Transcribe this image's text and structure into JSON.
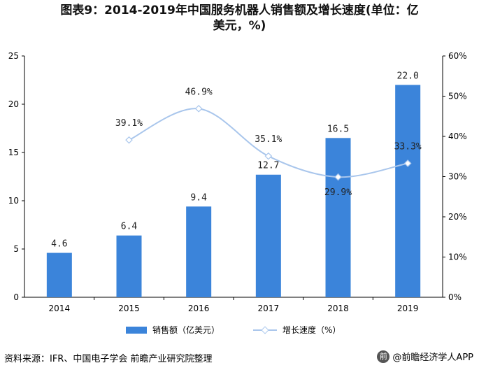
{
  "title": {
    "line1": "图表9：2014-2019年中国服务机器人销售额及增长速度(单位：亿",
    "line2": "美元，%)"
  },
  "chart_data": {
    "type": "bar",
    "categories": [
      "2014",
      "2015",
      "2016",
      "2017",
      "2018",
      "2019"
    ],
    "series": [
      {
        "name": "销售额（亿美元）",
        "type": "bar",
        "axis": "left",
        "values": [
          4.6,
          6.4,
          9.4,
          12.7,
          16.5,
          22.0
        ],
        "labels": [
          "4.6",
          "6.4",
          "9.4",
          "12.7",
          "16.5",
          "22.0"
        ]
      },
      {
        "name": "增长速度（%）",
        "type": "line",
        "axis": "right",
        "values": [
          null,
          39.1,
          46.9,
          35.1,
          29.9,
          33.3
        ],
        "labels": [
          "",
          "39.1%",
          "46.9%",
          "35.1%",
          "29.9%",
          "33.3%"
        ]
      }
    ],
    "ylim": [
      0,
      25
    ],
    "y_ticks": [
      "0",
      "5",
      "10",
      "15",
      "20",
      "25"
    ],
    "y2lim": [
      0,
      60
    ],
    "y2_ticks": [
      "0%",
      "10%",
      "20%",
      "30%",
      "40%",
      "50%",
      "60%"
    ],
    "legend_position": "bottom-center",
    "colors": {
      "bar": "#3b84da",
      "line": "#a9c6ec"
    }
  },
  "legend": {
    "bar_label": "销售额（亿美元）",
    "line_label": "增长速度（%）"
  },
  "footer": {
    "source": "资料来源：IFR、中国电子学会 前瞻产业研究院整理",
    "brand": "@前瞻经济学人APP",
    "brand_icon": "qianzhan-logo-icon"
  }
}
